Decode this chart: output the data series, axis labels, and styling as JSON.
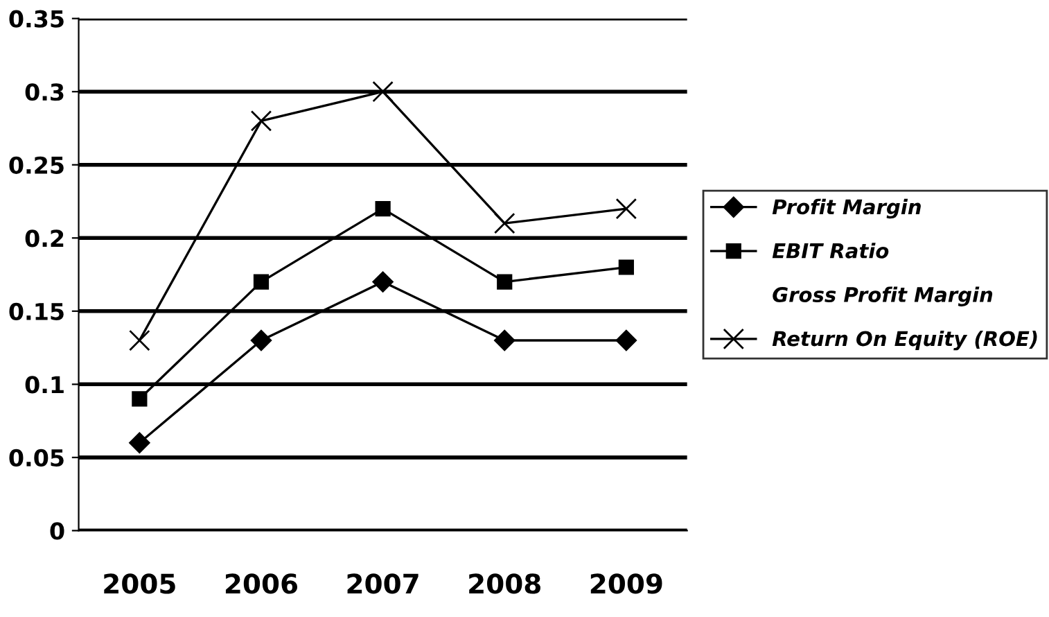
{
  "chart_data": {
    "type": "line",
    "categories": [
      "2005",
      "2006",
      "2007",
      "2008",
      "2009"
    ],
    "series": [
      {
        "name": "Profit Margin",
        "color": "#000000",
        "marker": "diamond",
        "values": [
          0.06,
          0.13,
          0.17,
          0.13,
          0.13
        ]
      },
      {
        "name": "EBIT Ratio",
        "color": "#000000",
        "marker": "square",
        "values": [
          0.09,
          0.17,
          0.22,
          0.17,
          0.18
        ]
      },
      {
        "name": "Gross Profit Margin",
        "values": [
          null,
          null,
          null,
          null,
          null
        ]
      },
      {
        "name": "Return On Equity (ROE)",
        "color": "#000000",
        "marker": "cross",
        "values": [
          0.13,
          0.28,
          0.3,
          0.21,
          0.22
        ]
      }
    ],
    "ylim": [
      0,
      0.35
    ],
    "yticks": [
      0,
      0.05,
      0.1,
      0.15,
      0.2,
      0.25,
      0.3,
      0.35
    ],
    "grid": "y",
    "legend": "right"
  }
}
